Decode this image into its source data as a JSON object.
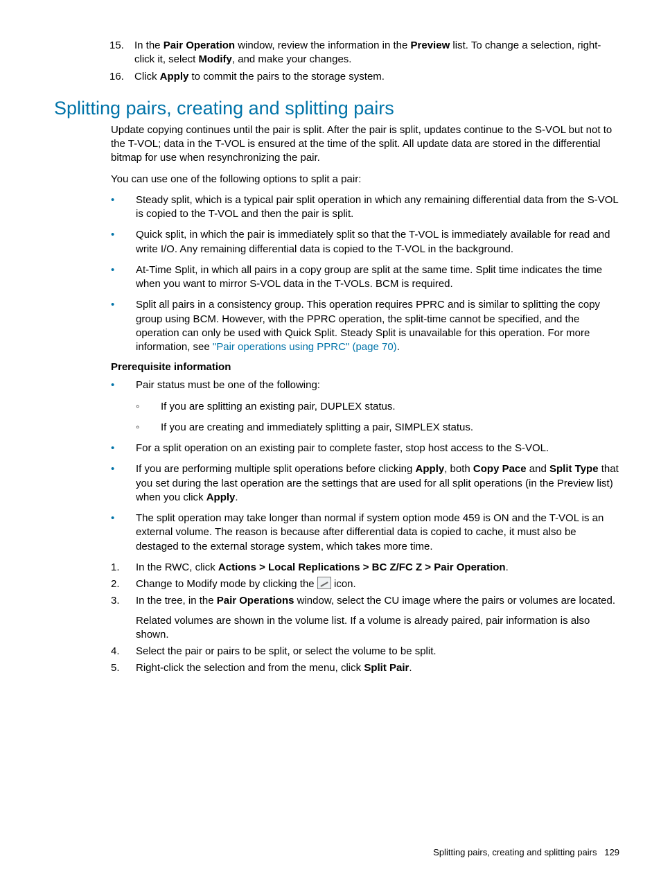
{
  "top_steps": {
    "items": [
      {
        "num": "15.",
        "pre": "In the ",
        "b1": "Pair Operation",
        "mid1": " window, review the information in the ",
        "b2": "Preview",
        "mid2": " list. To change a selection, right-click it, select ",
        "b3": "Modify",
        "post": ", and make your changes."
      },
      {
        "num": "16.",
        "pre": "Click ",
        "b1": "Apply",
        "post": " to commit the pairs to the storage system."
      }
    ]
  },
  "heading": "Splitting pairs, creating and splitting pairs",
  "intro_p1": "Update copying continues until the pair is split. After the pair is split, updates continue to the S-VOL but not to the T-VOL; data in the T-VOL is ensured at the time of the split. All update data are stored in the differential bitmap for use when resynchronizing the pair.",
  "intro_p2": "You can use one of the following options to split a pair:",
  "options": [
    "Steady split, which is a typical pair split operation in which any remaining differential data from the S-VOL is copied to the T-VOL and then the pair is split.",
    "Quick split, in which the pair is immediately split so that the T-VOL is immediately available for read and write I/O. Any remaining differential data is copied to the T-VOL in the background.",
    "At-Time Split, in which all pairs in a copy group are split at the same time. Split time indicates the time when you want to mirror S-VOL data in the T-VOLs. BCM is required."
  ],
  "option4": {
    "pre": "Split all pairs in a consistency group. This operation requires PPRC and is similar to splitting the copy group using BCM. However, with the PPRC operation, the split-time cannot be specified, and the operation can only be used with Quick Split. Steady Split is unavailable for this operation. For more information, see ",
    "link": "\"Pair operations using PPRC\" (page 70)",
    "post": "."
  },
  "prereq_heading": "Prerequisite information",
  "prereq": {
    "item1": {
      "text": "Pair status must be one of the following:",
      "sub": [
        "If you are splitting an existing pair, DUPLEX status.",
        "If you are creating and immediately splitting a pair, SIMPLEX status."
      ]
    },
    "item2": "For a split operation on an existing pair to complete faster, stop host access to the S-VOL.",
    "item3": {
      "pre": "If you are performing multiple split operations before clicking ",
      "b1": "Apply",
      "mid1": ", both ",
      "b2": "Copy Pace",
      "mid2": " and ",
      "b3": "Split Type",
      "mid3": " that you set during the last operation are the settings that are used for all split operations (in the Preview list) when you click ",
      "b4": "Apply",
      "post": "."
    },
    "item4": "The split operation may take longer than normal if system option mode 459 is ON and the T-VOL is an external volume. The reason is because after differential data is copied to cache, it must also be destaged to the external storage system, which takes more time."
  },
  "steps": {
    "s1": {
      "num": "1.",
      "pre": "In the RWC, click ",
      "b1": "Actions > Local Replications > BC Z/FC Z > Pair Operation",
      "post": "."
    },
    "s2": {
      "num": "2.",
      "pre": "Change to Modify mode by clicking the ",
      "post": " icon."
    },
    "s3": {
      "num": "3.",
      "pre": "In the tree, in the ",
      "b1": "Pair Operations",
      "post": " window, select the CU image where the pairs or volumes are located.",
      "extra": "Related volumes are shown in the volume list. If a volume is already paired, pair information is also shown."
    },
    "s4": {
      "num": "4.",
      "text": "Select the pair or pairs to be split, or select the volume to be split."
    },
    "s5": {
      "num": "5.",
      "pre": "Right-click the selection and from the menu, click ",
      "b1": "Split Pair",
      "post": "."
    }
  },
  "footer": {
    "title": "Splitting pairs, creating and splitting pairs",
    "page": "129"
  },
  "colors": {
    "accent": "#0073a8"
  }
}
